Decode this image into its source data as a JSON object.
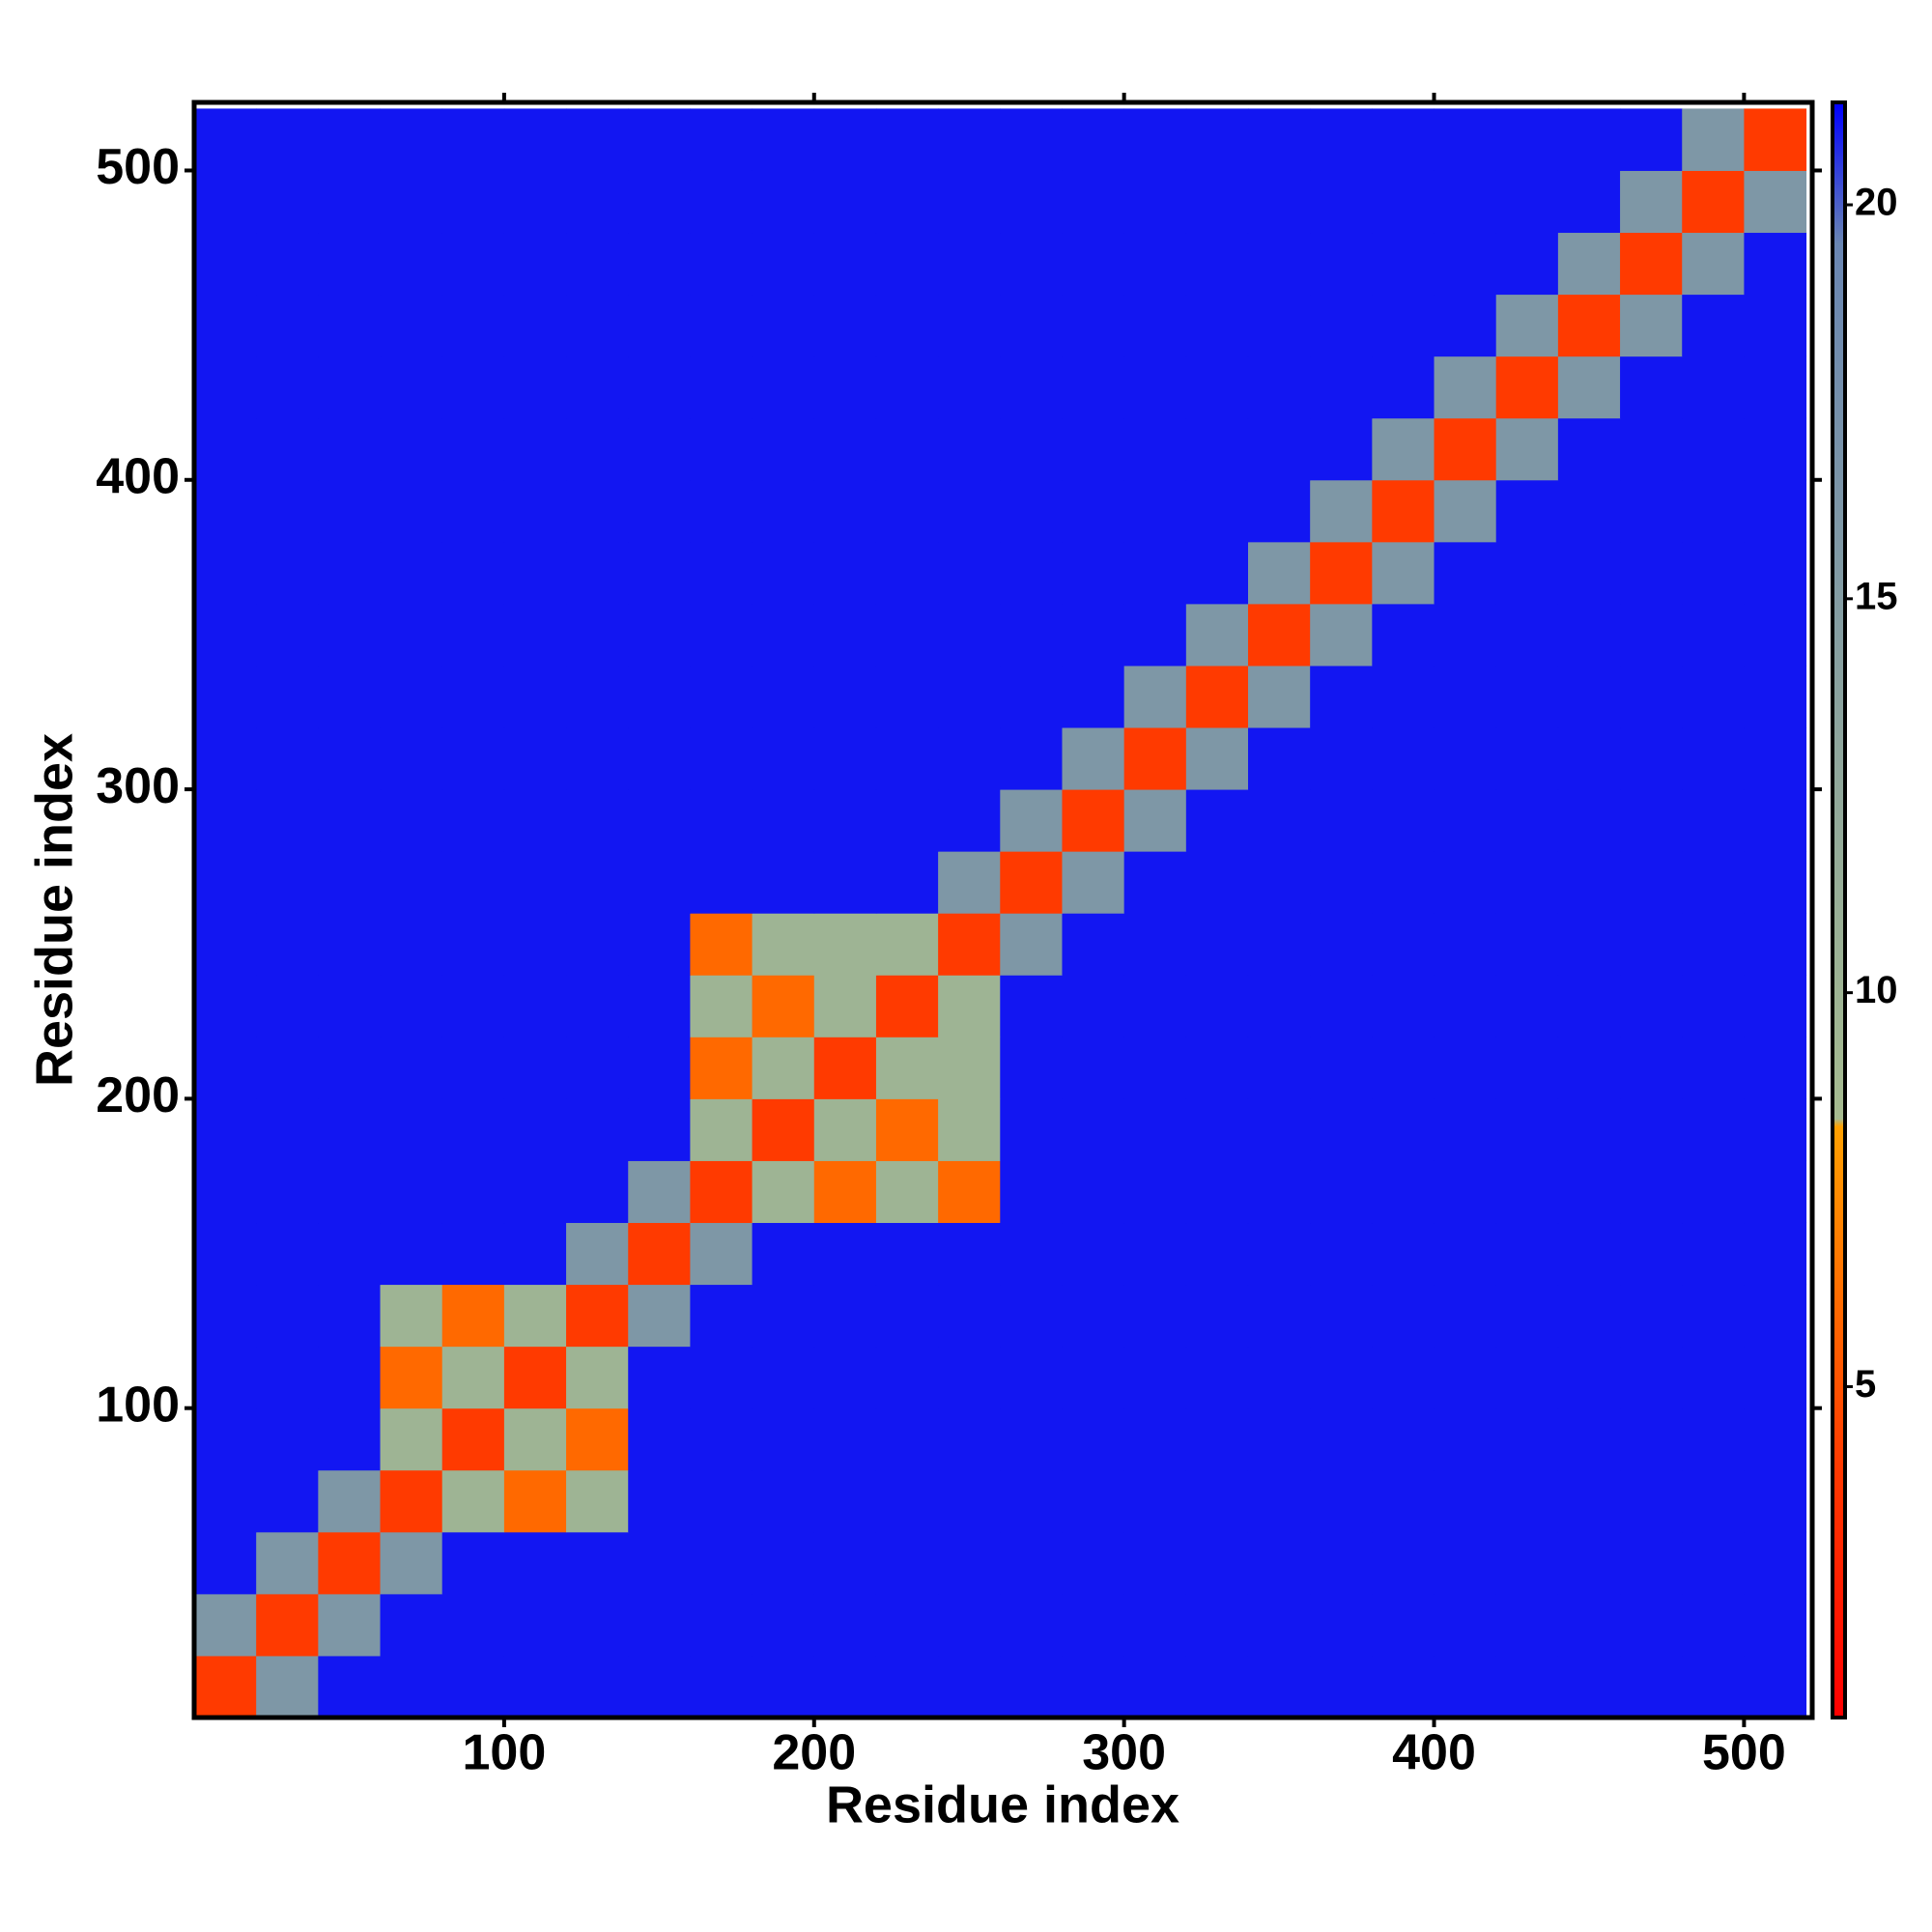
{
  "chart_data": {
    "type": "heatmap",
    "x_label": "Residue index",
    "y_label": "Residue index",
    "x_bins": [
      0,
      20,
      40,
      60,
      80,
      100,
      120,
      140,
      160,
      180,
      200,
      220,
      240,
      260,
      280,
      300,
      320,
      340,
      360,
      380,
      400,
      420,
      440,
      460,
      480,
      500,
      520
    ],
    "y_bins": [
      0,
      20,
      40,
      60,
      80,
      100,
      120,
      140,
      160,
      180,
      200,
      220,
      240,
      260,
      280,
      300,
      320,
      340,
      360,
      380,
      400,
      420,
      440,
      460,
      480,
      500,
      520
    ],
    "z": [
      [
        4,
        16,
        21,
        21,
        21,
        21,
        21,
        21,
        21,
        21,
        21,
        21,
        21,
        21,
        21,
        21,
        21,
        21,
        21,
        21,
        21,
        21,
        21,
        21,
        21,
        21
      ],
      [
        16,
        4,
        16,
        21,
        21,
        21,
        21,
        21,
        21,
        21,
        21,
        21,
        21,
        21,
        21,
        21,
        21,
        21,
        21,
        21,
        21,
        21,
        21,
        21,
        21,
        21
      ],
      [
        21,
        16,
        4,
        16,
        21,
        21,
        21,
        21,
        21,
        21,
        21,
        21,
        21,
        21,
        21,
        21,
        21,
        21,
        21,
        21,
        21,
        21,
        21,
        21,
        21,
        21
      ],
      [
        21,
        21,
        16,
        4,
        10,
        6,
        10,
        21,
        21,
        21,
        21,
        21,
        21,
        21,
        21,
        21,
        21,
        21,
        21,
        21,
        21,
        21,
        21,
        21,
        21,
        21
      ],
      [
        21,
        21,
        21,
        10,
        4,
        10,
        6,
        21,
        21,
        21,
        21,
        21,
        21,
        21,
        21,
        21,
        21,
        21,
        21,
        21,
        21,
        21,
        21,
        21,
        21,
        21
      ],
      [
        21,
        21,
        21,
        6,
        10,
        4,
        10,
        21,
        21,
        21,
        21,
        21,
        21,
        21,
        21,
        21,
        21,
        21,
        21,
        21,
        21,
        21,
        21,
        21,
        21,
        21
      ],
      [
        21,
        21,
        21,
        10,
        6,
        10,
        4,
        16,
        21,
        21,
        21,
        21,
        21,
        21,
        21,
        21,
        21,
        21,
        21,
        21,
        21,
        21,
        21,
        21,
        21,
        21
      ],
      [
        21,
        21,
        21,
        21,
        21,
        21,
        16,
        4,
        16,
        21,
        21,
        21,
        21,
        21,
        21,
        21,
        21,
        21,
        21,
        21,
        21,
        21,
        21,
        21,
        21,
        21
      ],
      [
        21,
        21,
        21,
        21,
        21,
        21,
        21,
        16,
        4,
        10,
        6,
        10,
        6,
        21,
        21,
        21,
        21,
        21,
        21,
        21,
        21,
        21,
        21,
        21,
        21,
        21
      ],
      [
        21,
        21,
        21,
        21,
        21,
        21,
        21,
        21,
        10,
        4,
        10,
        6,
        10,
        21,
        21,
        21,
        21,
        21,
        21,
        21,
        21,
        21,
        21,
        21,
        21,
        21
      ],
      [
        21,
        21,
        21,
        21,
        21,
        21,
        21,
        21,
        6,
        10,
        4,
        10,
        10,
        21,
        21,
        21,
        21,
        21,
        21,
        21,
        21,
        21,
        21,
        21,
        21,
        21
      ],
      [
        21,
        21,
        21,
        21,
        21,
        21,
        21,
        21,
        10,
        6,
        10,
        4,
        10,
        21,
        21,
        21,
        21,
        21,
        21,
        21,
        21,
        21,
        21,
        21,
        21,
        21
      ],
      [
        21,
        21,
        21,
        21,
        21,
        21,
        21,
        21,
        6,
        10,
        10,
        10,
        4,
        16,
        21,
        21,
        21,
        21,
        21,
        21,
        21,
        21,
        21,
        21,
        21,
        21
      ],
      [
        21,
        21,
        21,
        21,
        21,
        21,
        21,
        21,
        21,
        21,
        21,
        21,
        16,
        4,
        16,
        21,
        21,
        21,
        21,
        21,
        21,
        21,
        21,
        21,
        21,
        21
      ],
      [
        21,
        21,
        21,
        21,
        21,
        21,
        21,
        21,
        21,
        21,
        21,
        21,
        21,
        16,
        4,
        16,
        21,
        21,
        21,
        21,
        21,
        21,
        21,
        21,
        21,
        21
      ],
      [
        21,
        21,
        21,
        21,
        21,
        21,
        21,
        21,
        21,
        21,
        21,
        21,
        21,
        21,
        16,
        4,
        16,
        21,
        21,
        21,
        21,
        21,
        21,
        21,
        21,
        21
      ],
      [
        21,
        21,
        21,
        21,
        21,
        21,
        21,
        21,
        21,
        21,
        21,
        21,
        21,
        21,
        21,
        16,
        4,
        16,
        21,
        21,
        21,
        21,
        21,
        21,
        21,
        21
      ],
      [
        21,
        21,
        21,
        21,
        21,
        21,
        21,
        21,
        21,
        21,
        21,
        21,
        21,
        21,
        21,
        21,
        16,
        4,
        16,
        21,
        21,
        21,
        21,
        21,
        21,
        21
      ],
      [
        21,
        21,
        21,
        21,
        21,
        21,
        21,
        21,
        21,
        21,
        21,
        21,
        21,
        21,
        21,
        21,
        21,
        16,
        4,
        16,
        21,
        21,
        21,
        21,
        21,
        21
      ],
      [
        21,
        21,
        21,
        21,
        21,
        21,
        21,
        21,
        21,
        21,
        21,
        21,
        21,
        21,
        21,
        21,
        21,
        21,
        16,
        4,
        16,
        21,
        21,
        21,
        21,
        21
      ],
      [
        21,
        21,
        21,
        21,
        21,
        21,
        21,
        21,
        21,
        21,
        21,
        21,
        21,
        21,
        21,
        21,
        21,
        21,
        21,
        16,
        4,
        16,
        21,
        21,
        21,
        21
      ],
      [
        21,
        21,
        21,
        21,
        21,
        21,
        21,
        21,
        21,
        21,
        21,
        21,
        21,
        21,
        21,
        21,
        21,
        21,
        21,
        21,
        16,
        4,
        16,
        21,
        21,
        21
      ],
      [
        21,
        21,
        21,
        21,
        21,
        21,
        21,
        21,
        21,
        21,
        21,
        21,
        21,
        21,
        21,
        21,
        21,
        21,
        21,
        21,
        21,
        16,
        4,
        16,
        21,
        21
      ],
      [
        21,
        21,
        21,
        21,
        21,
        21,
        21,
        21,
        21,
        21,
        21,
        21,
        21,
        21,
        21,
        21,
        21,
        21,
        21,
        21,
        21,
        21,
        16,
        4,
        16,
        21
      ],
      [
        21,
        21,
        21,
        21,
        21,
        21,
        21,
        21,
        21,
        21,
        21,
        21,
        21,
        21,
        21,
        21,
        21,
        21,
        21,
        21,
        21,
        21,
        21,
        16,
        4,
        16
      ],
      [
        21,
        21,
        21,
        21,
        21,
        21,
        21,
        21,
        21,
        21,
        21,
        21,
        21,
        21,
        21,
        21,
        21,
        21,
        21,
        21,
        21,
        21,
        21,
        21,
        16,
        4
      ]
    ],
    "xlim": [
      0,
      522
    ],
    "ylim": [
      0,
      522
    ],
    "xticks": [
      100,
      200,
      300,
      400,
      500
    ],
    "yticks": [
      100,
      200,
      300,
      400,
      500
    ],
    "zlim": [
      0.8,
      21.3
    ],
    "zticks": [
      5,
      10,
      15,
      20
    ],
    "colorscale": [
      {
        "value": 0.8,
        "color": "#ff0000"
      },
      {
        "value": 4,
        "color": "#ff3a00"
      },
      {
        "value": 8.3,
        "color": "#ffa000"
      },
      {
        "value": 8.4,
        "color": "#a6bb90"
      },
      {
        "value": 13,
        "color": "#8fa69c"
      },
      {
        "value": 19.5,
        "color": "#6a86b2"
      },
      {
        "value": 21.3,
        "color": "#0000ff"
      }
    ]
  }
}
